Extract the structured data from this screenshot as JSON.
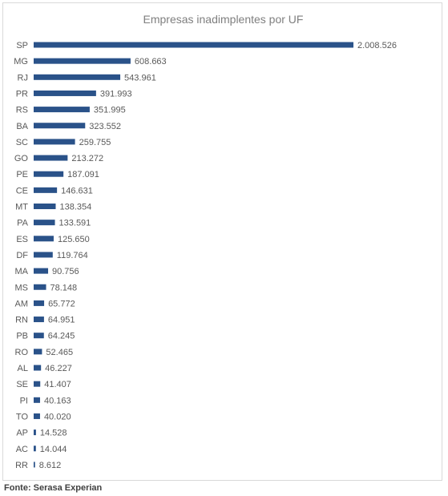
{
  "chart_data": {
    "type": "bar",
    "orientation": "horizontal",
    "title": "Empresas inadimplentes por UF",
    "xlabel": "",
    "ylabel": "",
    "grid": false,
    "legend": "none",
    "bar_color": "#2a5289",
    "categories": [
      "SP",
      "MG",
      "RJ",
      "PR",
      "RS",
      "BA",
      "SC",
      "GO",
      "PE",
      "CE",
      "MT",
      "PA",
      "ES",
      "DF",
      "MA",
      "MS",
      "AM",
      "RN",
      "PB",
      "RO",
      "AL",
      "SE",
      "PI",
      "TO",
      "AP",
      "AC",
      "RR"
    ],
    "values": [
      2008526,
      608663,
      543961,
      391993,
      351995,
      323552,
      259755,
      213272,
      187091,
      146631,
      138354,
      133591,
      125650,
      119764,
      90756,
      78148,
      65772,
      64951,
      64245,
      52465,
      46227,
      41407,
      40163,
      40020,
      14528,
      14044,
      8612
    ],
    "value_labels": [
      "2.008.526",
      "608.663",
      "543.961",
      "391.993",
      "351.995",
      "323.552",
      "259.755",
      "213.272",
      "187.091",
      "146.631",
      "138.354",
      "133.591",
      "125.650",
      "119.764",
      "90.756",
      "78.148",
      "65.772",
      "64.951",
      "64.245",
      "52.465",
      "46.227",
      "41.407",
      "40.163",
      "40.020",
      "14.528",
      "14.044",
      "8.612"
    ],
    "xlim": [
      0,
      2008526
    ]
  },
  "source": "Fonte: Serasa Experian"
}
